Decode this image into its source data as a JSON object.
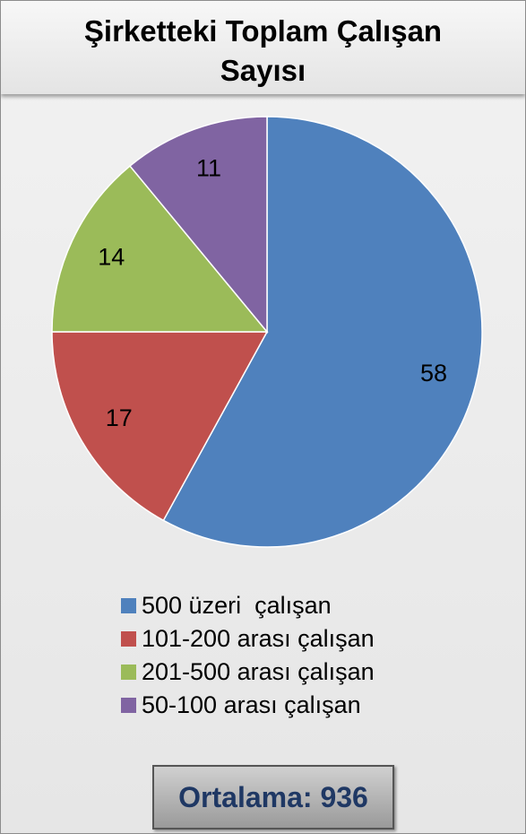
{
  "chart_data": {
    "type": "pie",
    "title": "Şirketteki Toplam Çalışan Sayısı",
    "categories": [
      "500 üzeri  çalışan",
      "101-200 arası çalışan",
      "201-500 arası çalışan",
      "50-100 arası çalışan"
    ],
    "values": [
      58,
      17,
      14,
      11
    ],
    "colors": [
      "#4f81bd",
      "#c0504d",
      "#9bbb59",
      "#8064a2"
    ],
    "legend": "bottom",
    "annotation": "Ortalama: 936"
  }
}
